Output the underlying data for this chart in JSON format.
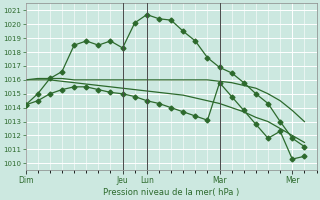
{
  "background_color": "#cce8e0",
  "grid_color": "#ffffff",
  "line_color": "#2d6a2d",
  "title": "Pression niveau de la mer( hPa )",
  "ylim": [
    1009.5,
    1021.5
  ],
  "yticks": [
    1010,
    1011,
    1012,
    1013,
    1014,
    1015,
    1016,
    1017,
    1018,
    1019,
    1020,
    1021
  ],
  "xlim": [
    0,
    24
  ],
  "day_labels": [
    "Dim",
    "Jeu",
    "Lun",
    "Mar",
    "Mer"
  ],
  "day_positions": [
    0,
    8,
    10,
    16,
    22
  ],
  "vlines": [
    8,
    10,
    16
  ],
  "series_main": {
    "x": [
      0,
      1,
      2,
      3,
      4,
      5,
      6,
      7,
      8,
      9,
      10,
      11,
      12,
      13,
      14,
      15,
      16,
      17,
      18,
      19,
      20,
      21,
      22,
      23
    ],
    "y": [
      1014.2,
      1015.0,
      1016.1,
      1016.6,
      1018.5,
      1018.8,
      1018.5,
      1018.8,
      1018.3,
      1020.1,
      1020.7,
      1020.4,
      1020.3,
      1019.5,
      1018.8,
      1017.6,
      1016.9,
      1016.5,
      1015.8,
      1015.0,
      1014.3,
      1013.0,
      1011.8,
      1011.2
    ]
  },
  "series_flat1": {
    "x": [
      0,
      1,
      2,
      3,
      4,
      5,
      6,
      7,
      8,
      9,
      10,
      11,
      12,
      13,
      14,
      15,
      16,
      17,
      18,
      19,
      20,
      21,
      22,
      23
    ],
    "y": [
      1016.0,
      1016.1,
      1016.1,
      1016.1,
      1016.0,
      1016.0,
      1016.0,
      1016.0,
      1016.0,
      1016.0,
      1016.0,
      1016.0,
      1016.0,
      1016.0,
      1016.0,
      1016.0,
      1015.9,
      1015.8,
      1015.6,
      1015.4,
      1015.0,
      1014.5,
      1013.8,
      1013.0
    ]
  },
  "series_flat2": {
    "x": [
      0,
      1,
      2,
      3,
      4,
      5,
      6,
      7,
      8,
      9,
      10,
      11,
      12,
      13,
      14,
      15,
      16,
      17,
      18,
      19,
      20,
      21,
      22,
      23
    ],
    "y": [
      1016.0,
      1016.0,
      1016.0,
      1015.9,
      1015.8,
      1015.7,
      1015.6,
      1015.5,
      1015.4,
      1015.3,
      1015.2,
      1015.1,
      1015.0,
      1014.9,
      1014.7,
      1014.5,
      1014.3,
      1014.0,
      1013.7,
      1013.3,
      1013.0,
      1012.5,
      1012.0,
      1011.5
    ]
  },
  "series_low": {
    "x": [
      0,
      1,
      2,
      3,
      4,
      5,
      6,
      7,
      8,
      9,
      10,
      11,
      12,
      13,
      14,
      15,
      16,
      17,
      18,
      19,
      20,
      21,
      22,
      23
    ],
    "y": [
      1014.2,
      1014.5,
      1015.0,
      1015.3,
      1015.5,
      1015.5,
      1015.3,
      1015.1,
      1015.0,
      1014.8,
      1014.5,
      1014.3,
      1014.0,
      1013.7,
      1013.4,
      1013.1,
      1015.8,
      1014.8,
      1013.8,
      1012.8,
      1011.8,
      1012.3,
      1010.3,
      1010.5
    ]
  }
}
